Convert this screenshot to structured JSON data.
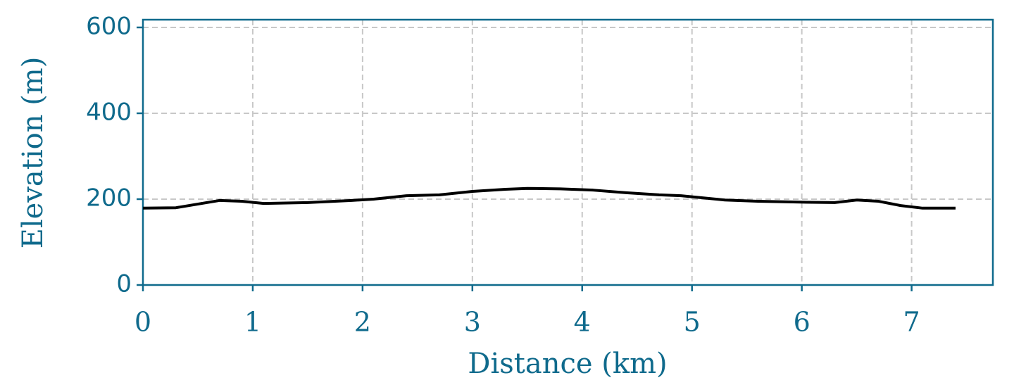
{
  "chart_data": {
    "type": "line",
    "x_label": "Distance (km)",
    "y_label": "Elevation (m)",
    "x": [
      0,
      0.3,
      0.7,
      0.9,
      1.1,
      1.5,
      1.9,
      2.1,
      2.4,
      2.7,
      3.0,
      3.3,
      3.5,
      3.8,
      4.1,
      4.4,
      4.7,
      4.9,
      5.3,
      5.6,
      6.0,
      6.3,
      6.5,
      6.7,
      6.9,
      7.1,
      7.4
    ],
    "values": [
      179,
      180,
      197,
      195,
      190,
      192,
      197,
      200,
      208,
      210,
      218,
      223,
      225,
      224,
      221,
      215,
      210,
      208,
      198,
      195,
      193,
      192,
      198,
      195,
      185,
      179,
      179
    ],
    "color": "#000000",
    "xlim": [
      0,
      7.74
    ],
    "xticks": [
      0,
      1,
      2,
      3,
      4,
      5,
      6,
      7
    ],
    "ylim": [
      0,
      618
    ],
    "yticks": [
      0,
      200,
      400,
      600
    ],
    "grid": true
  }
}
